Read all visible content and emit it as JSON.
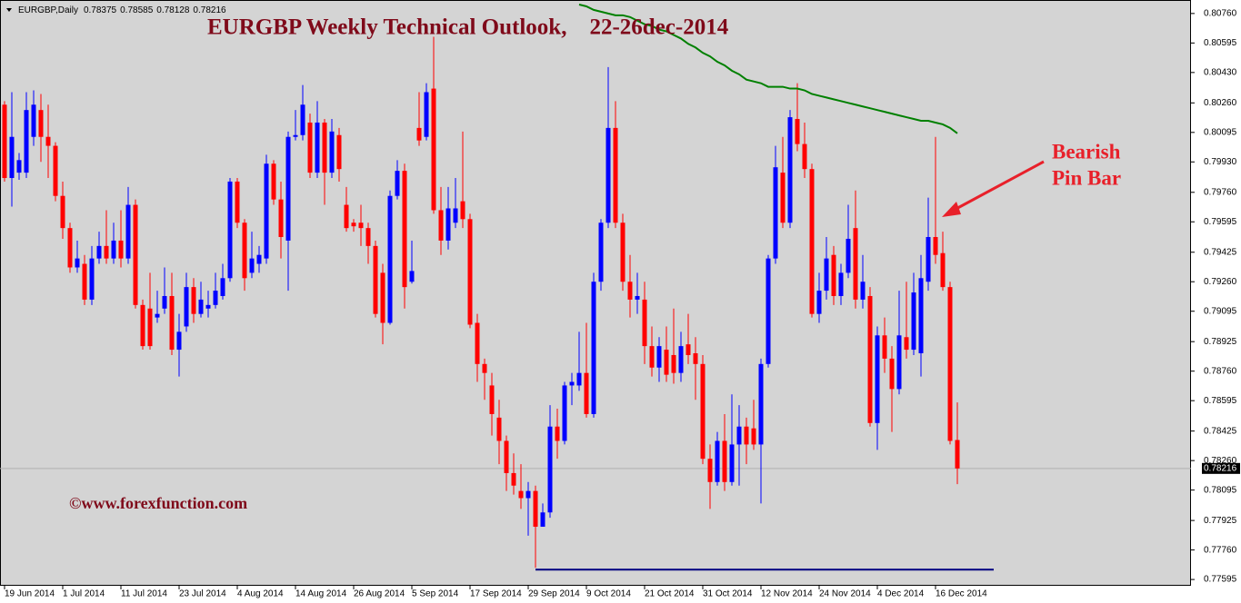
{
  "chart_data": {
    "type": "candlestick",
    "header": "EURGBP,Daily",
    "title": "EURGBP Weekly Technical Outlook,    22-26dec-2014",
    "annotation": [
      "Bearish",
      "Pin Bar"
    ],
    "watermark": "©www.forexfunction.com",
    "up_color": "#0000ff",
    "down_color": "#ff0000",
    "categories": [
      "19 Jun 2014",
      null,
      null,
      null,
      null,
      null,
      null,
      null,
      "1 Jul 2014",
      null,
      null,
      null,
      null,
      null,
      null,
      null,
      "11 Jul 2014",
      null,
      null,
      null,
      null,
      null,
      null,
      null,
      "23 Jul 2014",
      null,
      null,
      null,
      null,
      null,
      null,
      null,
      "4 Aug 2014",
      null,
      null,
      null,
      null,
      null,
      null,
      null,
      "14 Aug 2014",
      null,
      null,
      null,
      null,
      null,
      null,
      null,
      "26 Aug 2014",
      null,
      null,
      null,
      null,
      null,
      null,
      null,
      "5 Sep 2014",
      null,
      null,
      null,
      null,
      null,
      null,
      null,
      "17 Sep 2014",
      null,
      null,
      null,
      null,
      null,
      null,
      null,
      "29 Sep 2014",
      null,
      null,
      null,
      null,
      null,
      null,
      null,
      "9 Oct 2014",
      null,
      null,
      null,
      null,
      null,
      null,
      null,
      "21 Oct 2014",
      null,
      null,
      null,
      null,
      null,
      null,
      null,
      "31 Oct 2014",
      null,
      null,
      null,
      null,
      null,
      null,
      null,
      "12 Nov 2014",
      null,
      null,
      null,
      null,
      null,
      null,
      null,
      "24 Nov 2014",
      null,
      null,
      null,
      null,
      null,
      null,
      null,
      "4 Dec 2014",
      null,
      null,
      null,
      null,
      null,
      null,
      null,
      "16 Dec 2014",
      null,
      null,
      null
    ],
    "open": [
      0.8025,
      0.7984,
      0.7987,
      0.7987,
      0.8007,
      0.8022,
      0.8007,
      0.8002,
      0.7974,
      0.7956,
      0.7934,
      0.7936,
      0.7916,
      0.7939,
      0.7946,
      0.7939,
      0.7949,
      0.7939,
      0.7969,
      0.7913,
      0.7911,
      0.7906,
      0.7911,
      0.7918,
      0.7888,
      0.7901,
      0.7923,
      0.7908,
      0.7911,
      0.7913,
      0.7918,
      0.7928,
      0.7982,
      0.7959,
      0.7931,
      0.7936,
      0.7939,
      0.7992,
      0.7972,
      0.7949,
      0.8007,
      0.8008,
      0.8015,
      0.7987,
      0.8015,
      0.7987,
      0.8008,
      0.7969,
      0.7959,
      0.7959,
      0.7956,
      0.7946,
      0.7931,
      0.7903,
      0.7974,
      0.7988,
      0.7926,
      0.8012,
      0.8007,
      0.8034,
      0.7966,
      0.7949,
      0.7959,
      0.7971,
      0.7961,
      0.7903,
      0.788,
      0.7868,
      0.785,
      0.7837,
      0.7819,
      0.7809,
      0.7805,
      0.7809,
      0.7789,
      0.7797,
      0.7845,
      0.7837,
      0.7868,
      0.7868,
      0.7875,
      0.7852,
      0.7926,
      0.7959,
      0.8012,
      0.7959,
      0.7926,
      0.7916,
      0.7916,
      0.789,
      0.7878,
      0.7888,
      0.7885,
      0.7875,
      0.7891,
      0.7886,
      0.788,
      0.7827,
      0.7814,
      0.7837,
      0.7814,
      0.7835,
      0.7845,
      0.7844,
      0.7835,
      0.788,
      0.7939,
      0.7987,
      0.7959,
      0.8017,
      0.8003,
      0.7989,
      0.7908,
      0.7921,
      0.7941,
      0.7918,
      0.7931,
      0.7956,
      0.7916,
      0.7918,
      0.7847,
      0.7896,
      0.7883,
      0.7866,
      0.7895,
      0.7888,
      0.7886,
      0.7926,
      0.7951,
      0.7942,
      0.7923,
      0.78375
    ],
    "high": [
      0.8027,
      0.8032,
      0.7998,
      0.8032,
      0.8033,
      0.8031,
      0.8025,
      0.8004,
      0.7982,
      0.7959,
      0.7949,
      0.7941,
      0.7946,
      0.7954,
      0.7966,
      0.7959,
      0.7966,
      0.7979,
      0.7972,
      0.7916,
      0.7931,
      0.7921,
      0.7934,
      0.7931,
      0.7908,
      0.7931,
      0.7928,
      0.7926,
      0.7921,
      0.7931,
      0.7936,
      0.7984,
      0.7984,
      0.7961,
      0.7954,
      0.7946,
      0.7997,
      0.7994,
      0.7982,
      0.801,
      0.8022,
      0.8036,
      0.802,
      0.8027,
      0.8017,
      0.8017,
      0.8012,
      0.7979,
      0.7961,
      0.7969,
      0.7959,
      0.7949,
      0.7936,
      0.7977,
      0.7994,
      0.7992,
      0.7949,
      0.8032,
      0.8037,
      0.8063,
      0.7979,
      0.7979,
      0.7984,
      0.801,
      0.7964,
      0.7908,
      0.7883,
      0.7875,
      0.786,
      0.784,
      0.783,
      0.7824,
      0.7814,
      0.7812,
      0.7802,
      0.7857,
      0.7855,
      0.787,
      0.7875,
      0.7898,
      0.7903,
      0.7931,
      0.7961,
      0.8046,
      0.8027,
      0.7964,
      0.7941,
      0.7931,
      0.7926,
      0.7901,
      0.7895,
      0.7901,
      0.7911,
      0.7898,
      0.7908,
      0.7895,
      0.7885,
      0.7835,
      0.7842,
      0.7852,
      0.7863,
      0.7857,
      0.785,
      0.786,
      0.7883,
      0.7941,
      0.8002,
      0.8007,
      0.8022,
      0.8037,
      0.8015,
      0.7992,
      0.7931,
      0.7951,
      0.7946,
      0.7936,
      0.7969,
      0.7977,
      0.7941,
      0.7923,
      0.7901,
      0.7906,
      0.789,
      0.7921,
      0.7926,
      0.7931,
      0.7941,
      0.7973,
      0.8007,
      0.7954,
      0.7926,
      0.78585
    ],
    "low": [
      0.7982,
      0.7968,
      0.7983,
      0.7984,
      0.8002,
      0.7993,
      0.7984,
      0.7971,
      0.795,
      0.7931,
      0.7931,
      0.7913,
      0.7913,
      0.7936,
      0.7936,
      0.7936,
      0.7934,
      0.7936,
      0.7911,
      0.7888,
      0.7888,
      0.7903,
      0.7908,
      0.7885,
      0.7873,
      0.7898,
      0.7903,
      0.7906,
      0.7906,
      0.7911,
      0.7916,
      0.7926,
      0.7956,
      0.7921,
      0.7928,
      0.7931,
      0.7936,
      0.7969,
      0.7939,
      0.7921,
      0.8005,
      0.8005,
      0.7984,
      0.7984,
      0.7969,
      0.7984,
      0.7982,
      0.7954,
      0.7954,
      0.7946,
      0.7936,
      0.7906,
      0.7891,
      0.7902,
      0.7972,
      0.7911,
      0.7925,
      0.8002,
      0.8005,
      0.7964,
      0.7941,
      0.7944,
      0.7956,
      0.7956,
      0.79,
      0.787,
      0.786,
      0.784,
      0.7824,
      0.7809,
      0.7807,
      0.7799,
      0.7784,
      0.7766,
      0.7789,
      0.7794,
      0.7827,
      0.7835,
      0.7857,
      0.7865,
      0.785,
      0.785,
      0.7921,
      0.7956,
      0.7956,
      0.7921,
      0.7906,
      0.7908,
      0.788,
      0.7873,
      0.787,
      0.787,
      0.7869,
      0.787,
      0.788,
      0.786,
      0.7824,
      0.7799,
      0.7812,
      0.7809,
      0.7812,
      0.7812,
      0.7824,
      0.7832,
      0.7802,
      0.7878,
      0.7936,
      0.7956,
      0.7956,
      0.7999,
      0.7984,
      0.7906,
      0.7903,
      0.7916,
      0.7913,
      0.7913,
      0.7928,
      0.7911,
      0.7911,
      0.7845,
      0.7832,
      0.7875,
      0.7842,
      0.7863,
      0.7883,
      0.7885,
      0.7873,
      0.7921,
      0.7936,
      0.7921,
      0.7835,
      0.78128
    ],
    "close": [
      0.7984,
      0.8007,
      0.7994,
      0.8022,
      0.8025,
      0.8007,
      0.8002,
      0.7974,
      0.7956,
      0.7934,
      0.7939,
      0.7916,
      0.7939,
      0.7946,
      0.7939,
      0.7949,
      0.7939,
      0.7969,
      0.7913,
      0.789,
      0.789,
      0.7908,
      0.7918,
      0.7888,
      0.7898,
      0.7923,
      0.7908,
      0.7916,
      0.7913,
      0.7921,
      0.7928,
      0.7982,
      0.7959,
      0.7928,
      0.7939,
      0.7941,
      0.7992,
      0.7972,
      0.7951,
      0.8007,
      0.8008,
      0.8025,
      0.7987,
      0.8015,
      0.7987,
      0.801,
      0.7989,
      0.7956,
      0.7957,
      0.7956,
      0.7946,
      0.7908,
      0.7903,
      0.7974,
      0.7988,
      0.7923,
      0.7932,
      0.8005,
      0.8032,
      0.7966,
      0.7949,
      0.7967,
      0.7967,
      0.7961,
      0.7902,
      0.788,
      0.7875,
      0.7852,
      0.7837,
      0.7819,
      0.7812,
      0.7805,
      0.7809,
      0.7789,
      0.7797,
      0.7845,
      0.7837,
      0.7868,
      0.787,
      0.7875,
      0.7852,
      0.7926,
      0.7959,
      0.8012,
      0.7959,
      0.7926,
      0.7916,
      0.7918,
      0.789,
      0.7878,
      0.789,
      0.7874,
      0.7875,
      0.789,
      0.7885,
      0.788,
      0.7827,
      0.7814,
      0.7837,
      0.7814,
      0.7835,
      0.7845,
      0.7835,
      0.7835,
      0.788,
      0.7939,
      0.799,
      0.7959,
      0.8018,
      0.8003,
      0.7989,
      0.7908,
      0.7921,
      0.7939,
      0.7918,
      0.7931,
      0.795,
      0.7916,
      0.7926,
      0.7847,
      0.7896,
      0.7883,
      0.7866,
      0.7896,
      0.7888,
      0.792,
      0.7928,
      0.7951,
      0.7941,
      0.7923,
      0.7837,
      0.78216
    ],
    "ma": {
      "color": "#008000",
      "values": [
        null,
        null,
        null,
        null,
        null,
        null,
        null,
        null,
        null,
        null,
        null,
        null,
        null,
        null,
        null,
        null,
        null,
        null,
        null,
        null,
        null,
        null,
        null,
        null,
        null,
        null,
        null,
        null,
        null,
        null,
        null,
        null,
        null,
        null,
        null,
        null,
        null,
        null,
        null,
        null,
        null,
        null,
        null,
        null,
        null,
        null,
        null,
        null,
        null,
        null,
        null,
        null,
        null,
        null,
        null,
        null,
        null,
        null,
        null,
        null,
        null,
        null,
        null,
        null,
        null,
        null,
        null,
        null,
        null,
        null,
        null,
        null,
        null,
        null,
        null,
        null,
        null,
        null,
        null,
        0.8081,
        0.808,
        0.8078,
        0.8077,
        0.8076,
        0.8075,
        0.8075,
        0.8074,
        0.8072,
        0.807,
        0.8069,
        0.8067,
        0.8066,
        0.8064,
        0.8062,
        0.8059,
        0.8057,
        0.8054,
        0.8052,
        0.8049,
        0.8047,
        0.8044,
        0.8042,
        0.8039,
        0.8038,
        0.8037,
        0.8035,
        0.8035,
        0.8035,
        0.8034,
        0.8034,
        0.8033,
        0.8031,
        0.803,
        0.8029,
        0.8028,
        0.8027,
        0.8026,
        0.8025,
        0.8024,
        0.8023,
        0.8022,
        0.8021,
        0.802,
        0.8019,
        0.8018,
        0.8017,
        0.8016,
        0.8016,
        0.8015,
        0.8014,
        0.8012,
        0.8009
      ]
    },
    "support": {
      "value": 0.7765,
      "color": "#000080"
    },
    "ylim": [
      0.7756,
      0.8081
    ],
    "yticks": [
      {
        "value": 0.8076,
        "label": "0.80760"
      },
      0.80595,
      {
        "value": 0.8043,
        "label": "0.80430"
      },
      {
        "value": 0.8026,
        "label": "0.80260"
      },
      0.80095,
      {
        "value": 0.7993,
        "label": "0.79930"
      },
      {
        "value": 0.7976,
        "label": "0.79760"
      },
      0.79595,
      0.79425,
      {
        "value": 0.7926,
        "label": "0.79260"
      },
      0.79095,
      0.78925,
      {
        "value": 0.7876,
        "label": "0.78760"
      },
      0.78595,
      0.78425,
      {
        "value": 0.7826,
        "label": "0.78260"
      },
      0.78095,
      0.77925,
      {
        "value": 0.7776,
        "label": "0.77760"
      },
      0.77595
    ]
  }
}
